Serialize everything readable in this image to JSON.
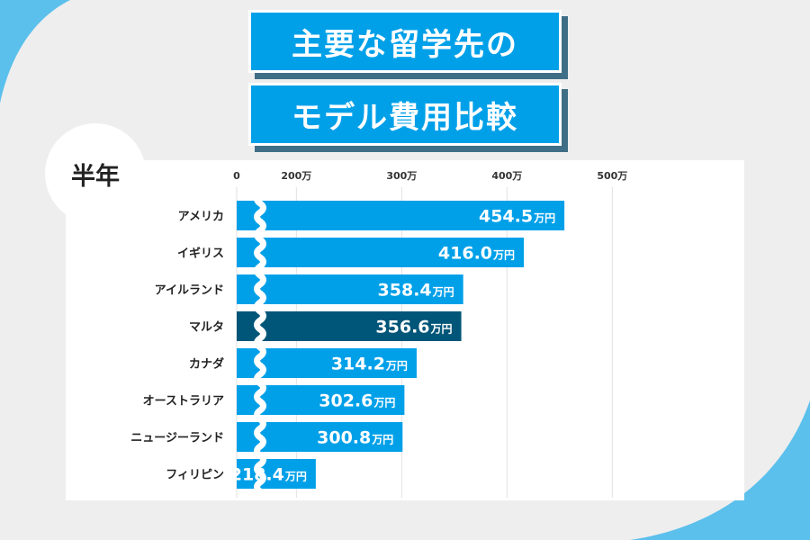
{
  "title": {
    "line1": "主要な留学先の",
    "line2": "モデル費用比較"
  },
  "period_label": "半年",
  "colors": {
    "bar": "#00a0e9",
    "highlight": "#005678",
    "accent_bg": "#5bc0eb",
    "title_shadow": "#3f6f86"
  },
  "chart_data": {
    "type": "bar",
    "orientation": "horizontal",
    "categories": [
      "アメリカ",
      "イギリス",
      "アイルランド",
      "マルタ",
      "カナダ",
      "オーストラリア",
      "ニュージーランド",
      "フィリピン"
    ],
    "values": [
      454.5,
      416.0,
      358.4,
      356.6,
      314.2,
      302.6,
      300.8,
      218.4
    ],
    "value_labels": [
      "454.5",
      "416.0",
      "358.4",
      "356.6",
      "314.2",
      "302.6",
      "300.8",
      "218.4"
    ],
    "value_unit": "万円",
    "highlight_category": "マルタ",
    "xticks": [
      {
        "value": 0,
        "label": "0"
      },
      {
        "value": 200,
        "label": "200万"
      },
      {
        "value": 300,
        "label": "300万"
      },
      {
        "value": 400,
        "label": "400万"
      },
      {
        "value": 500,
        "label": "500万"
      }
    ],
    "axis_break": true,
    "grid": true
  }
}
